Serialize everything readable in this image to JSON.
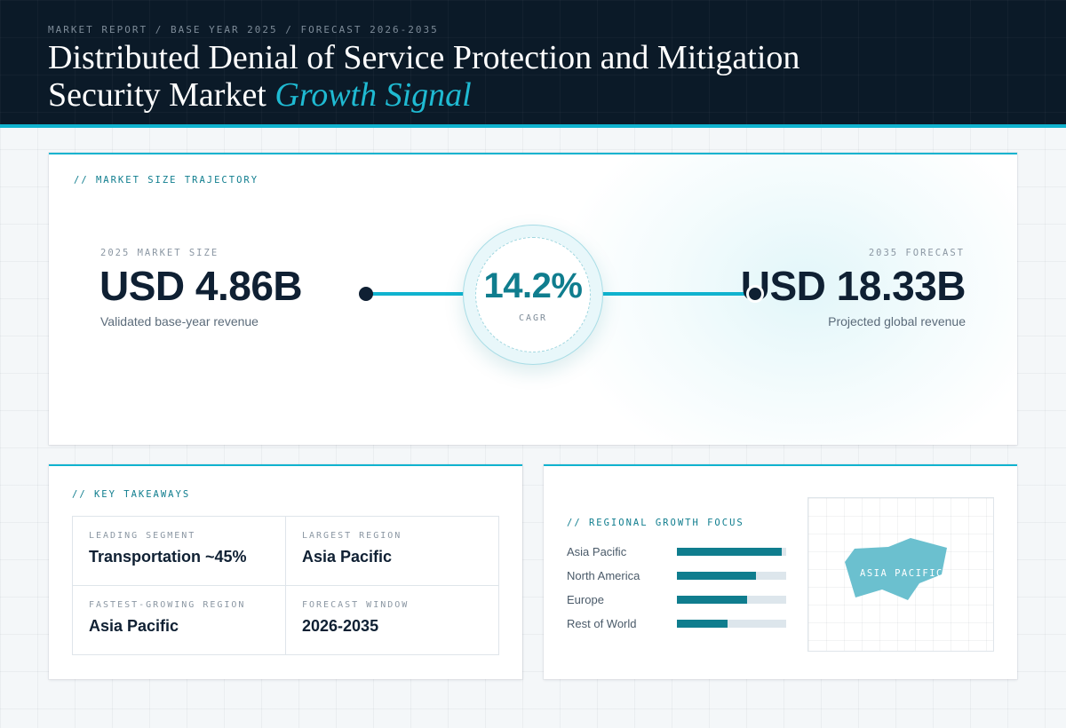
{
  "header": {
    "eyebrow": "MARKET REPORT / BASE YEAR 2025 / FORECAST 2026-2035",
    "title_main": "Distributed Denial of Service Protection and Mitigation Security Market",
    "title_accent": "Growth Signal"
  },
  "trajectory": {
    "label": "// MARKET SIZE TRAJECTORY",
    "start": {
      "kicker": "2025 MARKET SIZE",
      "value": "USD 4.86B",
      "caption": "Validated base-year revenue"
    },
    "cagr": {
      "value": "14.2%",
      "label": "CAGR"
    },
    "end": {
      "kicker": "2035 FORECAST",
      "value": "USD 18.33B",
      "caption": "Projected global revenue"
    }
  },
  "takeaways": {
    "label": "// KEY TAKEAWAYS",
    "items": [
      {
        "key": "LEADING SEGMENT",
        "value": "Transportation ~45%"
      },
      {
        "key": "LARGEST REGION",
        "value": "Asia Pacific"
      },
      {
        "key": "FASTEST-GROWING REGION",
        "value": "Asia Pacific"
      },
      {
        "key": "FORECAST WINDOW",
        "value": "2026-2035"
      }
    ]
  },
  "regional": {
    "label": "// REGIONAL GROWTH FOCUS",
    "bars": [
      {
        "name": "Asia Pacific",
        "level": 0.96
      },
      {
        "name": "North America",
        "level": 0.72
      },
      {
        "name": "Europe",
        "level": 0.64
      },
      {
        "name": "Rest of World",
        "level": 0.46
      }
    ],
    "map_label": "ASIA PACIFIC"
  },
  "colors": {
    "header_bg": "#0b1a28",
    "accent": "#10b3cf",
    "teal": "#0f7d8e",
    "ink": "#0f2033",
    "map_fill": "#6bc0cf"
  }
}
